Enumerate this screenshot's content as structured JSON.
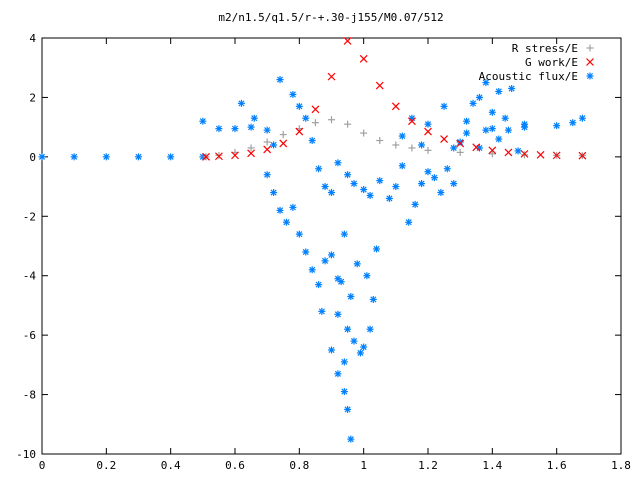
{
  "chart_data": {
    "type": "scatter",
    "title": "m2/n1.5/q1.5/r-+.30-j155/M0.07/512",
    "xlabel": "",
    "ylabel": "",
    "xlim": [
      0,
      1.8
    ],
    "ylim": [
      -10,
      4
    ],
    "xticks": [
      "0",
      "0.2",
      "0.4",
      "0.6",
      "0.8",
      "1",
      "1.2",
      "1.4",
      "1.6",
      "1.8"
    ],
    "yticks": [
      "4",
      "2",
      "0",
      "-2",
      "-4",
      "-6",
      "-8",
      "-10"
    ],
    "grid": false,
    "legend_position": "top-right",
    "series": [
      {
        "name": "R stress/E",
        "marker": "+",
        "color": "#a0a0a0",
        "points": [
          [
            0.51,
            0.0
          ],
          [
            0.55,
            0.05
          ],
          [
            0.6,
            0.15
          ],
          [
            0.65,
            0.3
          ],
          [
            0.7,
            0.5
          ],
          [
            0.75,
            0.75
          ],
          [
            0.8,
            0.95
          ],
          [
            0.85,
            1.15
          ],
          [
            0.9,
            1.25
          ],
          [
            0.95,
            1.1
          ],
          [
            1.0,
            0.8
          ],
          [
            1.05,
            0.55
          ],
          [
            1.1,
            0.4
          ],
          [
            1.15,
            0.3
          ],
          [
            1.2,
            0.22
          ],
          [
            1.3,
            0.15
          ],
          [
            1.4,
            0.1
          ],
          [
            1.5,
            0.07
          ],
          [
            1.6,
            0.05
          ],
          [
            1.68,
            0.04
          ]
        ]
      },
      {
        "name": "G work/E",
        "marker": "x",
        "color": "#ff0000",
        "points": [
          [
            0.51,
            0.0
          ],
          [
            0.55,
            0.02
          ],
          [
            0.6,
            0.05
          ],
          [
            0.65,
            0.12
          ],
          [
            0.7,
            0.25
          ],
          [
            0.75,
            0.45
          ],
          [
            0.8,
            0.85
          ],
          [
            0.85,
            1.6
          ],
          [
            0.9,
            2.7
          ],
          [
            0.95,
            3.9
          ],
          [
            1.0,
            3.3
          ],
          [
            1.05,
            2.4
          ],
          [
            1.1,
            1.7
          ],
          [
            1.15,
            1.2
          ],
          [
            1.2,
            0.85
          ],
          [
            1.25,
            0.6
          ],
          [
            1.3,
            0.45
          ],
          [
            1.35,
            0.32
          ],
          [
            1.4,
            0.22
          ],
          [
            1.45,
            0.15
          ],
          [
            1.5,
            0.1
          ],
          [
            1.55,
            0.07
          ],
          [
            1.6,
            0.05
          ],
          [
            1.68,
            0.04
          ]
        ]
      },
      {
        "name": "Acoustic flux/E",
        "marker": "*",
        "color": "#0080ff",
        "points": [
          [
            0.0,
            0.0
          ],
          [
            0.1,
            0.0
          ],
          [
            0.2,
            0.0
          ],
          [
            0.3,
            0.0
          ],
          [
            0.4,
            0.0
          ],
          [
            0.5,
            0.0
          ],
          [
            0.5,
            1.2
          ],
          [
            0.55,
            0.95
          ],
          [
            0.6,
            0.95
          ],
          [
            0.65,
            1.0
          ],
          [
            1.4,
            0.95
          ],
          [
            1.5,
            1.0
          ],
          [
            1.6,
            1.05
          ],
          [
            1.65,
            1.15
          ],
          [
            1.68,
            1.3
          ],
          [
            0.62,
            1.8
          ],
          [
            0.66,
            1.3
          ],
          [
            0.7,
            0.9
          ],
          [
            0.72,
            0.4
          ],
          [
            0.74,
            2.6
          ],
          [
            0.78,
            2.1
          ],
          [
            0.8,
            1.7
          ],
          [
            0.82,
            1.3
          ],
          [
            0.84,
            0.55
          ],
          [
            0.86,
            -0.4
          ],
          [
            0.88,
            -1.0
          ],
          [
            0.9,
            -1.2
          ],
          [
            0.7,
            -0.6
          ],
          [
            0.72,
            -1.2
          ],
          [
            0.74,
            -1.8
          ],
          [
            0.76,
            -2.2
          ],
          [
            0.78,
            -1.7
          ],
          [
            0.8,
            -2.6
          ],
          [
            0.82,
            -3.2
          ],
          [
            0.84,
            -3.8
          ],
          [
            0.86,
            -4.3
          ],
          [
            0.87,
            -5.2
          ],
          [
            0.88,
            -3.5
          ],
          [
            0.9,
            -3.3
          ],
          [
            0.92,
            -4.1
          ],
          [
            0.9,
            -6.5
          ],
          [
            0.92,
            -5.3
          ],
          [
            0.93,
            -4.2
          ],
          [
            0.94,
            -2.6
          ],
          [
            0.94,
            -6.9
          ],
          [
            0.95,
            -5.8
          ],
          [
            0.96,
            -4.7
          ],
          [
            0.97,
            -6.2
          ],
          [
            0.98,
            -3.6
          ],
          [
            0.99,
            -6.6
          ],
          [
            1.0,
            -6.4
          ],
          [
            1.01,
            -4.0
          ],
          [
            1.02,
            -5.8
          ],
          [
            1.03,
            -4.8
          ],
          [
            1.04,
            -3.1
          ],
          [
            0.92,
            -7.3
          ],
          [
            0.94,
            -7.9
          ],
          [
            0.95,
            -8.5
          ],
          [
            0.96,
            -9.5
          ],
          [
            0.92,
            -0.2
          ],
          [
            0.95,
            -0.6
          ],
          [
            0.97,
            -0.9
          ],
          [
            1.0,
            -1.1
          ],
          [
            1.02,
            -1.3
          ],
          [
            1.05,
            -0.8
          ],
          [
            1.08,
            -1.4
          ],
          [
            1.1,
            -1.0
          ],
          [
            1.12,
            -0.3
          ],
          [
            1.14,
            -2.2
          ],
          [
            1.16,
            -1.6
          ],
          [
            1.18,
            -0.9
          ],
          [
            1.2,
            -0.5
          ],
          [
            1.22,
            -0.7
          ],
          [
            1.24,
            -1.2
          ],
          [
            1.26,
            -0.4
          ],
          [
            1.28,
            -0.9
          ],
          [
            1.3,
            0.5
          ],
          [
            1.32,
            1.2
          ],
          [
            1.34,
            1.8
          ],
          [
            1.36,
            0.3
          ],
          [
            1.38,
            0.9
          ],
          [
            1.4,
            1.5
          ],
          [
            1.42,
            0.6
          ],
          [
            1.44,
            1.3
          ],
          [
            1.46,
            2.3
          ],
          [
            1.48,
            0.2
          ],
          [
            1.5,
            1.1
          ],
          [
            1.12,
            0.7
          ],
          [
            1.15,
            1.3
          ],
          [
            1.18,
            0.4
          ],
          [
            1.2,
            1.1
          ],
          [
            1.25,
            1.7
          ],
          [
            1.28,
            0.3
          ],
          [
            1.32,
            0.8
          ],
          [
            1.36,
            2.0
          ],
          [
            1.38,
            2.5
          ],
          [
            1.42,
            2.2
          ],
          [
            1.45,
            0.9
          ]
        ]
      }
    ]
  }
}
